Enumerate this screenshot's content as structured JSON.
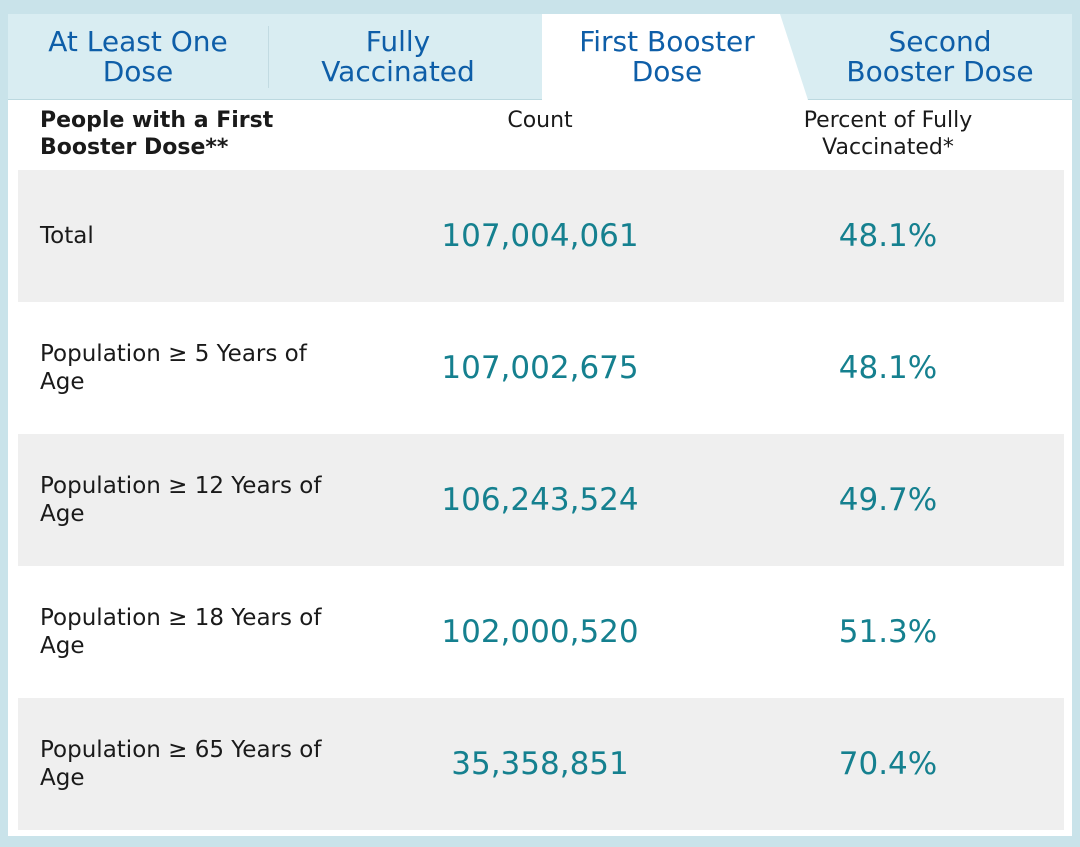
{
  "tabs": [
    {
      "label": "At Least One\nDose",
      "active": false
    },
    {
      "label": "Fully\nVaccinated",
      "active": false
    },
    {
      "label": "First Booster\nDose",
      "active": true
    },
    {
      "label": "Second\nBooster Dose",
      "active": false
    }
  ],
  "table": {
    "headers": {
      "label": "People with a First Booster Dose**",
      "count": "Count",
      "percent": "Percent of Fully Vaccinated*"
    },
    "rows": [
      {
        "label": "Total",
        "count": "107,004,061",
        "percent": "48.1%"
      },
      {
        "label": "Population ≥ 5 Years of Age",
        "count": "107,002,675",
        "percent": "48.1%"
      },
      {
        "label": "Population ≥ 12 Years of Age",
        "count": "106,243,524",
        "percent": "49.7%"
      },
      {
        "label": "Population ≥ 18 Years of Age",
        "count": "102,000,520",
        "percent": "51.3%"
      },
      {
        "label": "Population ≥ 65 Years of Age",
        "count": "35,358,851",
        "percent": "70.4%"
      }
    ]
  },
  "colors": {
    "background": "#c9e3ea",
    "tab_bar": "#d9edf2",
    "tab_text": "#0e5ea8",
    "value_text": "#15808f",
    "row_shaded": "#efefef",
    "row_plain": "#ffffff"
  }
}
